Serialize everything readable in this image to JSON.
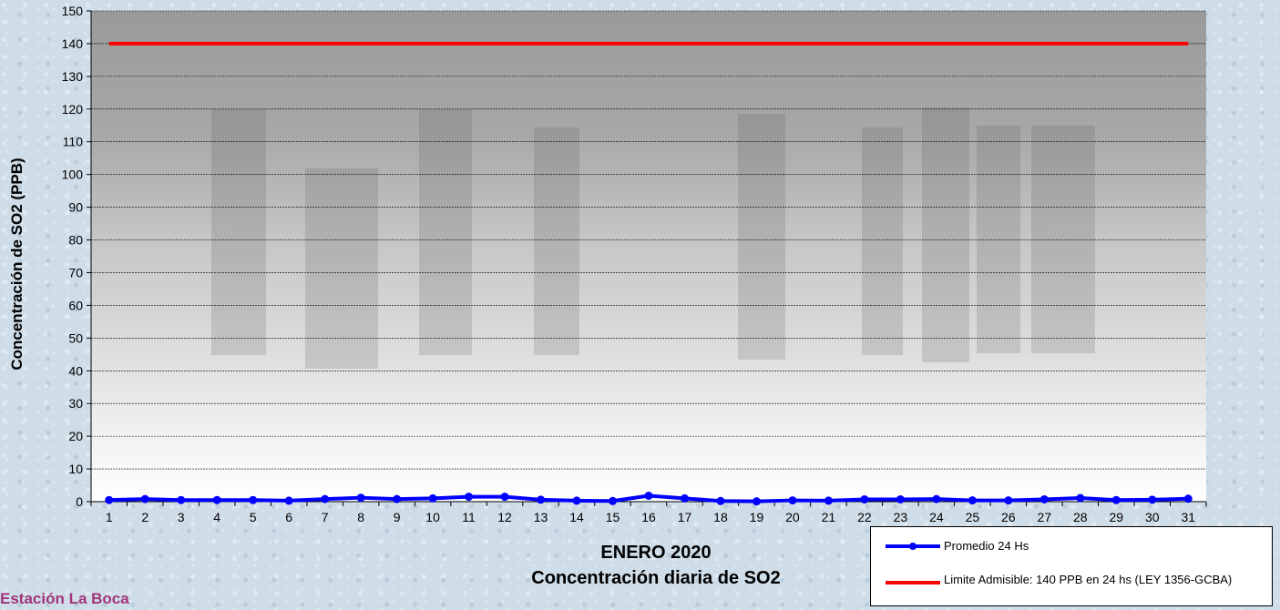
{
  "station": "Estación La Boca",
  "chart_data": {
    "type": "line",
    "title": "ENERO 2020",
    "subtitle": "Concentración diaria de SO2",
    "ylabel": "Concentración de SO2 (PPB)",
    "xlabel": "",
    "ylim": [
      0,
      150
    ],
    "yticks": [
      0,
      10,
      20,
      30,
      40,
      50,
      60,
      70,
      80,
      90,
      100,
      110,
      120,
      130,
      140,
      150
    ],
    "grid": true,
    "legend_position": "bottom-right",
    "categories": [
      "1",
      "2",
      "3",
      "4",
      "5",
      "6",
      "7",
      "8",
      "9",
      "10",
      "11",
      "12",
      "13",
      "14",
      "15",
      "16",
      "17",
      "18",
      "19",
      "20",
      "21",
      "22",
      "23",
      "24",
      "25",
      "26",
      "27",
      "28",
      "29",
      "30",
      "31"
    ],
    "series": [
      {
        "name": "Promedio 24 Hs",
        "color": "#0000ff",
        "marker": "circle",
        "values": [
          0.5,
          0.8,
          0.5,
          0.5,
          0.5,
          0.3,
          0.8,
          1.2,
          0.8,
          1.0,
          1.5,
          1.5,
          0.6,
          0.3,
          0.2,
          1.8,
          1.0,
          0.2,
          0.1,
          0.4,
          0.3,
          0.7,
          0.7,
          0.8,
          0.4,
          0.4,
          0.7,
          1.1,
          0.5,
          0.6,
          0.9
        ]
      },
      {
        "name": "Limite Admisible: 140 PPB en 24 hs (LEY 1356-GCBA)",
        "color": "#ff0000",
        "marker": "none",
        "values": [
          140,
          140,
          140,
          140,
          140,
          140,
          140,
          140,
          140,
          140,
          140,
          140,
          140,
          140,
          140,
          140,
          140,
          140,
          140,
          140,
          140,
          140,
          140,
          140,
          140,
          140,
          140,
          140,
          140,
          140,
          140
        ]
      }
    ]
  }
}
